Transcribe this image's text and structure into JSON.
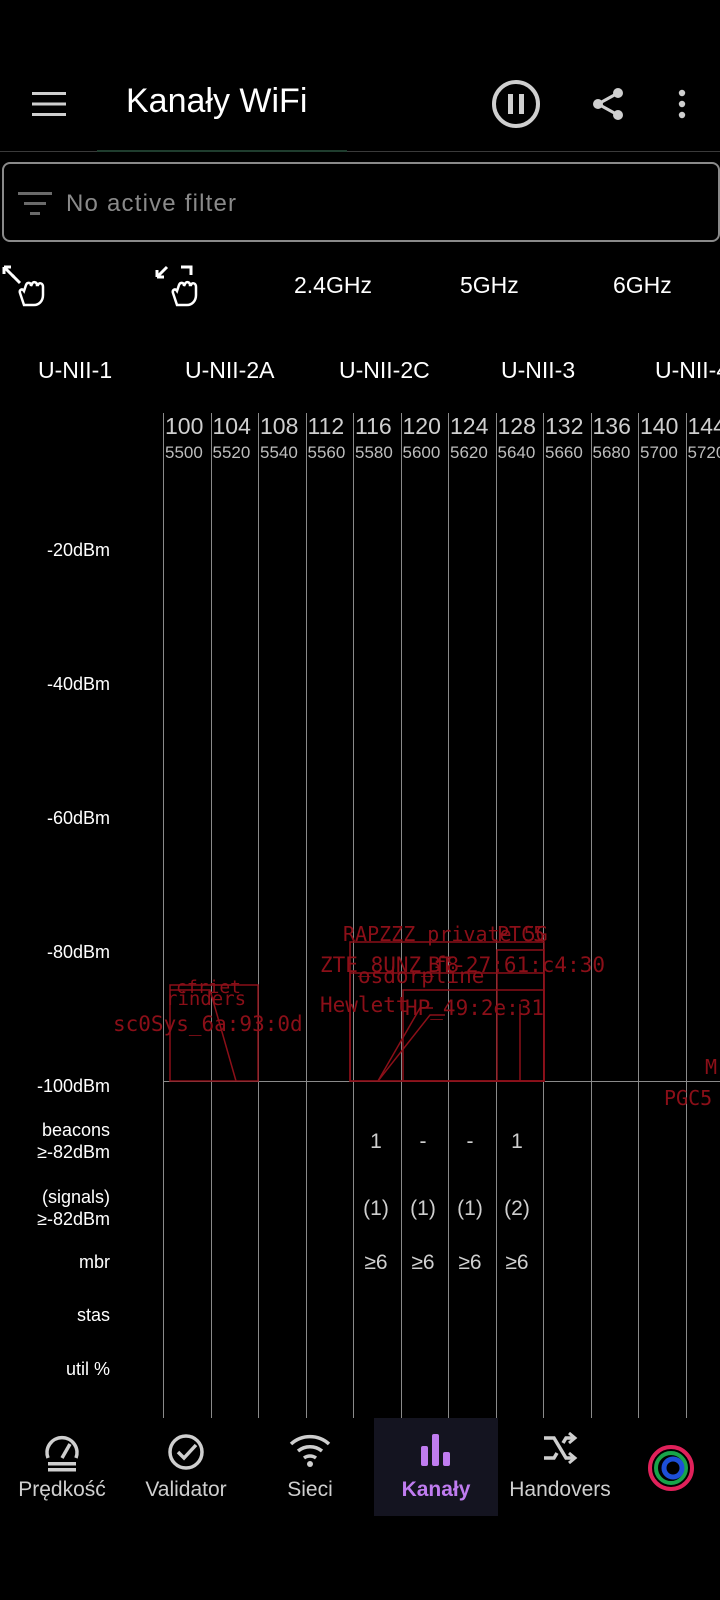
{
  "app": {
    "title": "Kanały WiFi",
    "filter_text": "No active filter"
  },
  "bands": [
    "2.4GHz",
    "5GHz",
    "6GHz"
  ],
  "unii": [
    "U-NII-1",
    "U-NII-2A",
    "U-NII-2C",
    "U-NII-3",
    "U-NII-4"
  ],
  "channels": [
    {
      "ch": "100",
      "freq": "5500"
    },
    {
      "ch": "104",
      "freq": "5520"
    },
    {
      "ch": "108",
      "freq": "5540"
    },
    {
      "ch": "112",
      "freq": "5560"
    },
    {
      "ch": "116",
      "freq": "5580"
    },
    {
      "ch": "120",
      "freq": "5600"
    },
    {
      "ch": "124",
      "freq": "5620"
    },
    {
      "ch": "128",
      "freq": "5640"
    },
    {
      "ch": "132",
      "freq": "5660"
    },
    {
      "ch": "136",
      "freq": "5680"
    },
    {
      "ch": "140",
      "freq": "5700"
    },
    {
      "ch": "144",
      "freq": "5720"
    }
  ],
  "y_axis": [
    "-20dBm",
    "-40dBm",
    "-60dBm",
    "-80dBm",
    "-100dBm"
  ],
  "row_labels": {
    "beacons": "beacons\n≥-82dBm",
    "signals": "(signals)\n≥-82dBm",
    "mbr": "mbr",
    "stas": "stas",
    "util": "util %"
  },
  "stats": {
    "beacons": [
      "1",
      "-",
      "-",
      "1"
    ],
    "signals": [
      "(1)",
      "(1)",
      "(1)",
      "(2)"
    ],
    "mbr": [
      "≥6",
      "≥6",
      "≥6",
      "≥6"
    ]
  },
  "networks": [
    "RAPZZZ private 5G",
    "PTC5",
    "ZTE_8UNZ_f8",
    "BT-27:61:c4:30",
    "osdorpline",
    "Hewlett",
    "HP_49:2e:31",
    "cfriet",
    "rinders",
    "sc0Sys_6a:93:0d",
    "M",
    "PGC5"
  ],
  "nav": [
    "Prędkość",
    "Validator",
    "Sieci",
    "Kanały",
    "Handovers"
  ],
  "colors": {
    "accent": "#c07cf0",
    "network": "#8b0f18",
    "grid": "#8a8a8a"
  }
}
